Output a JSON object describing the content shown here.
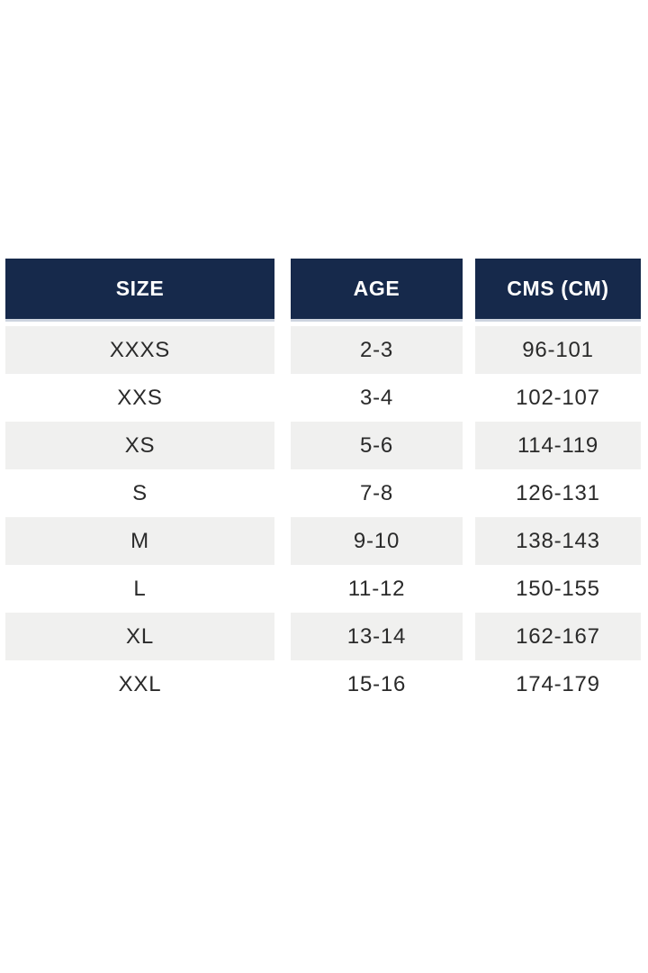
{
  "table": {
    "columns": [
      {
        "key": "size",
        "label": "SIZE"
      },
      {
        "key": "age",
        "label": "AGE"
      },
      {
        "key": "cms",
        "label": "CMS (CM)"
      }
    ],
    "rows": [
      {
        "size": "XXXS",
        "age": "2-3",
        "cms": "96-101"
      },
      {
        "size": "XXS",
        "age": "3-4",
        "cms": "102-107"
      },
      {
        "size": "XS",
        "age": "5-6",
        "cms": "114-119"
      },
      {
        "size": "S",
        "age": "7-8",
        "cms": "126-131"
      },
      {
        "size": "M",
        "age": "9-10",
        "cms": "138-143"
      },
      {
        "size": "L",
        "age": "11-12",
        "cms": "150-155"
      },
      {
        "size": "XL",
        "age": "13-14",
        "cms": "162-167"
      },
      {
        "size": "XXL",
        "age": "15-16",
        "cms": "174-179"
      }
    ],
    "colors": {
      "header_bg": "#16294b",
      "header_text": "#ffffff",
      "header_border": "#cdd4df",
      "row_stripe_bg": "#f0f0ef",
      "row_bg": "#ffffff",
      "body_text": "#2a2a2a"
    }
  }
}
